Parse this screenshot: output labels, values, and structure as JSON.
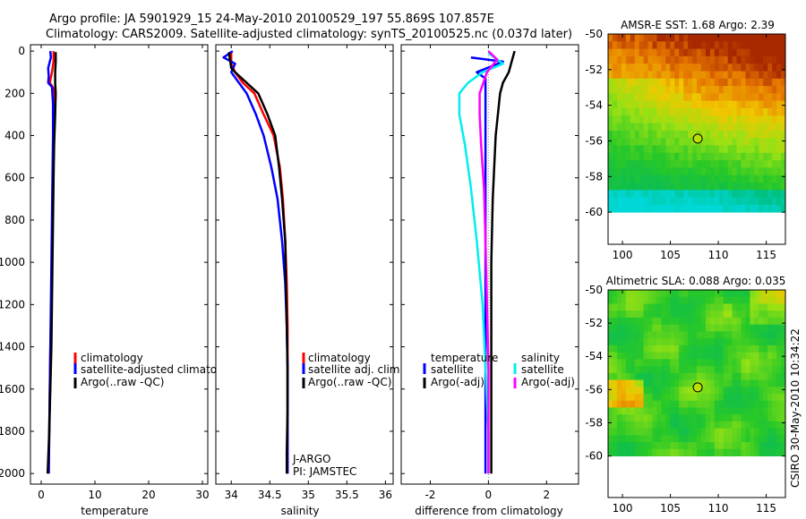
{
  "header": {
    "line1": "Argo profile: JA 5901929_15 24-May-2010 20100529_197 55.869S 107.857E",
    "line2": "Climatology: CARS2009. Satellite-adjusted climatology: synTS_20100525.nc (0.037d later)"
  },
  "credit": "CSIRO 30-May-2010 10:34:22",
  "colors": {
    "climatology": "#ff0000",
    "satellite": "#0000ff",
    "argo": "#000000",
    "salinity_satellite": "#00eeee",
    "salinity_argo": "#ff00ff"
  },
  "chart_data": [
    {
      "type": "line",
      "id": "temperature",
      "xlabel": "temperature",
      "ylabel": "",
      "xlim": [
        -2,
        31
      ],
      "ylim": [
        2050,
        -30
      ],
      "xticks": [
        0,
        10,
        20,
        30
      ],
      "yticks": [
        0,
        200,
        400,
        600,
        800,
        1000,
        1200,
        1400,
        1600,
        1800,
        2000
      ],
      "legend": {
        "position": "lower-right",
        "entries": [
          "climatology",
          "satellite-adjusted climatology",
          "Argo(..raw -QC)"
        ]
      },
      "series": [
        {
          "name": "climatology",
          "color_key": "climatology",
          "points": [
            [
              2.3,
              0
            ],
            [
              2.3,
              50
            ],
            [
              2.0,
              100
            ],
            [
              1.6,
              150
            ],
            [
              2.4,
              180
            ],
            [
              2.4,
              250
            ],
            [
              2.3,
              400
            ],
            [
              2.2,
              600
            ],
            [
              2.1,
              800
            ],
            [
              2.0,
              1000
            ],
            [
              1.9,
              1200
            ],
            [
              1.7,
              1400
            ],
            [
              1.6,
              1600
            ],
            [
              1.5,
              1800
            ],
            [
              1.4,
              2000
            ]
          ]
        },
        {
          "name": "satellite-adjusted climatology",
          "color_key": "satellite",
          "points": [
            [
              1.7,
              0
            ],
            [
              1.8,
              30
            ],
            [
              1.3,
              80
            ],
            [
              1.4,
              120
            ],
            [
              1.3,
              150
            ],
            [
              2.0,
              170
            ],
            [
              2.2,
              250
            ],
            [
              2.2,
              400
            ],
            [
              2.1,
              600
            ],
            [
              2.0,
              800
            ],
            [
              1.9,
              1000
            ],
            [
              1.8,
              1200
            ],
            [
              1.7,
              1400
            ],
            [
              1.6,
              1600
            ],
            [
              1.5,
              1800
            ],
            [
              1.4,
              2000
            ]
          ]
        },
        {
          "name": "Argo(..raw -QC)",
          "color_key": "argo",
          "points": [
            [
              2.7,
              5
            ],
            [
              2.7,
              50
            ],
            [
              2.6,
              100
            ],
            [
              2.6,
              150
            ],
            [
              2.7,
              200
            ],
            [
              2.6,
              300
            ],
            [
              2.4,
              450
            ],
            [
              2.3,
              600
            ],
            [
              2.2,
              800
            ],
            [
              2.1,
              1000
            ],
            [
              2.0,
              1200
            ],
            [
              1.9,
              1400
            ],
            [
              1.7,
              1600
            ],
            [
              1.5,
              1800
            ],
            [
              1.2,
              2000
            ]
          ]
        }
      ]
    },
    {
      "type": "line",
      "id": "salinity",
      "xlabel": "salinity",
      "ylabel": "",
      "xlim": [
        33.8,
        36.1
      ],
      "ylim": [
        2050,
        -30
      ],
      "xticks": [
        34,
        34.5,
        35,
        35.5,
        36
      ],
      "yticks": [
        0,
        200,
        400,
        600,
        800,
        1000,
        1200,
        1400,
        1600,
        1800,
        2000
      ],
      "legend": {
        "position": "lower-right",
        "entries": [
          "climatology",
          "satellite adj. clim.",
          "Argo(..raw -QC)"
        ]
      },
      "annotations": [
        "J-ARGO",
        "PI: JAMSTEC"
      ],
      "series": [
        {
          "name": "climatology",
          "color_key": "climatology",
          "points": [
            [
              34.0,
              0
            ],
            [
              34.0,
              30
            ],
            [
              34.0,
              60
            ],
            [
              34.05,
              100
            ],
            [
              34.15,
              150
            ],
            [
              34.3,
              200
            ],
            [
              34.42,
              300
            ],
            [
              34.55,
              400
            ],
            [
              34.63,
              550
            ],
            [
              34.67,
              700
            ],
            [
              34.7,
              900
            ],
            [
              34.72,
              1100
            ],
            [
              34.73,
              1300
            ],
            [
              34.73,
              1500
            ],
            [
              34.73,
              1700
            ],
            [
              34.73,
              1900
            ],
            [
              34.73,
              2000
            ]
          ]
        },
        {
          "name": "satellite adj. clim.",
          "color_key": "satellite",
          "points": [
            [
              34.02,
              0
            ],
            [
              33.9,
              30
            ],
            [
              34.05,
              60
            ],
            [
              34.0,
              100
            ],
            [
              34.1,
              150
            ],
            [
              34.2,
              200
            ],
            [
              34.32,
              300
            ],
            [
              34.42,
              400
            ],
            [
              34.52,
              550
            ],
            [
              34.6,
              700
            ],
            [
              34.66,
              900
            ],
            [
              34.7,
              1100
            ],
            [
              34.72,
              1300
            ],
            [
              34.73,
              1500
            ],
            [
              34.73,
              1700
            ],
            [
              34.73,
              1900
            ],
            [
              34.73,
              2000
            ]
          ]
        },
        {
          "name": "Argo(..raw -QC)",
          "color_key": "argo",
          "points": [
            [
              33.97,
              5
            ],
            [
              34.0,
              80
            ],
            [
              34.05,
              100
            ],
            [
              34.2,
              150
            ],
            [
              34.35,
              200
            ],
            [
              34.47,
              300
            ],
            [
              34.57,
              400
            ],
            [
              34.62,
              550
            ],
            [
              34.66,
              700
            ],
            [
              34.7,
              900
            ],
            [
              34.71,
              1100
            ],
            [
              34.72,
              1300
            ],
            [
              34.73,
              1500
            ],
            [
              34.73,
              1700
            ],
            [
              34.72,
              1900
            ],
            [
              34.72,
              2000
            ]
          ]
        }
      ]
    },
    {
      "type": "line",
      "id": "difference",
      "xlabel": "difference from climatology",
      "ylabel": "",
      "xlim": [
        -3.0,
        3.1
      ],
      "ylim": [
        2050,
        -30
      ],
      "xticks": [
        -2,
        0,
        2
      ],
      "yticks": [
        0,
        200,
        400,
        600,
        800,
        1000,
        1200,
        1400,
        1600,
        1800,
        2000
      ],
      "legend": {
        "position": "lower-middle",
        "group_titles": [
          "temperature",
          "salinity"
        ],
        "entries": [
          "satellite",
          "Argo(-adj)",
          "satellite",
          "Argo(-adj)"
        ]
      },
      "series": [
        {
          "name": "temperature satellite",
          "color_key": "satellite",
          "points": [
            [
              -0.6,
              30
            ],
            [
              0.5,
              50
            ],
            [
              -0.4,
              100
            ],
            [
              -0.1,
              130
            ],
            [
              -0.1,
              200
            ],
            [
              -0.1,
              400
            ],
            [
              -0.1,
              700
            ],
            [
              -0.1,
              1000
            ],
            [
              -0.1,
              1500
            ],
            [
              -0.1,
              2000
            ]
          ]
        },
        {
          "name": "temperature Argo(-adj)",
          "color_key": "argo",
          "points": [
            [
              0.9,
              0
            ],
            [
              0.8,
              50
            ],
            [
              0.7,
              100
            ],
            [
              0.5,
              150
            ],
            [
              0.4,
              200
            ],
            [
              0.25,
              400
            ],
            [
              0.15,
              700
            ],
            [
              0.1,
              1000
            ],
            [
              0.1,
              1500
            ],
            [
              0.1,
              2000
            ]
          ]
        },
        {
          "name": "salinity satellite",
          "color_key": "salinity_satellite",
          "points": [
            [
              0.0,
              10
            ],
            [
              0.5,
              60
            ],
            [
              -0.2,
              100
            ],
            [
              -0.7,
              150
            ],
            [
              -1.0,
              200
            ],
            [
              -1.0,
              300
            ],
            [
              -0.8,
              450
            ],
            [
              -0.6,
              650
            ],
            [
              -0.4,
              900
            ],
            [
              -0.2,
              1200
            ],
            [
              -0.1,
              1500
            ],
            [
              0.0,
              1800
            ],
            [
              0.0,
              2000
            ]
          ]
        },
        {
          "name": "salinity Argo(-adj)",
          "color_key": "salinity_argo",
          "points": [
            [
              0.0,
              0
            ],
            [
              0.3,
              40
            ],
            [
              -0.05,
              100
            ],
            [
              -0.3,
              200
            ],
            [
              -0.3,
              300
            ],
            [
              -0.25,
              450
            ],
            [
              -0.15,
              650
            ],
            [
              -0.1,
              900
            ],
            [
              -0.05,
              1200
            ],
            [
              0.0,
              1500
            ],
            [
              0.0,
              1800
            ],
            [
              0.0,
              2000
            ]
          ]
        }
      ]
    },
    {
      "type": "heatmap",
      "id": "sst-map",
      "title": "AMSR-E SST: 1.68 Argo: 2.39",
      "xlim": [
        98.5,
        117
      ],
      "ylim": [
        -61.8,
        -50
      ],
      "xticks": [
        100,
        105,
        110,
        115
      ],
      "yticks": [
        -50,
        -52,
        -54,
        -56,
        -58,
        -60
      ],
      "data_extent_lat": [
        -60,
        -50
      ],
      "argo_position": {
        "lon": 107.857,
        "lat": -55.869
      },
      "field": "sst"
    },
    {
      "type": "heatmap",
      "id": "sla-map",
      "title": "Altimetric SLA: 0.088 Argo: 0.035",
      "xlim": [
        98.5,
        117
      ],
      "ylim": [
        -62.5,
        -50
      ],
      "xticks": [
        100,
        105,
        110,
        115
      ],
      "yticks": [
        -50,
        -52,
        -54,
        -56,
        -58,
        -60
      ],
      "data_extent_lat": [
        -60,
        -50
      ],
      "argo_position": {
        "lon": 107.857,
        "lat": -55.869
      },
      "field": "sla"
    }
  ]
}
